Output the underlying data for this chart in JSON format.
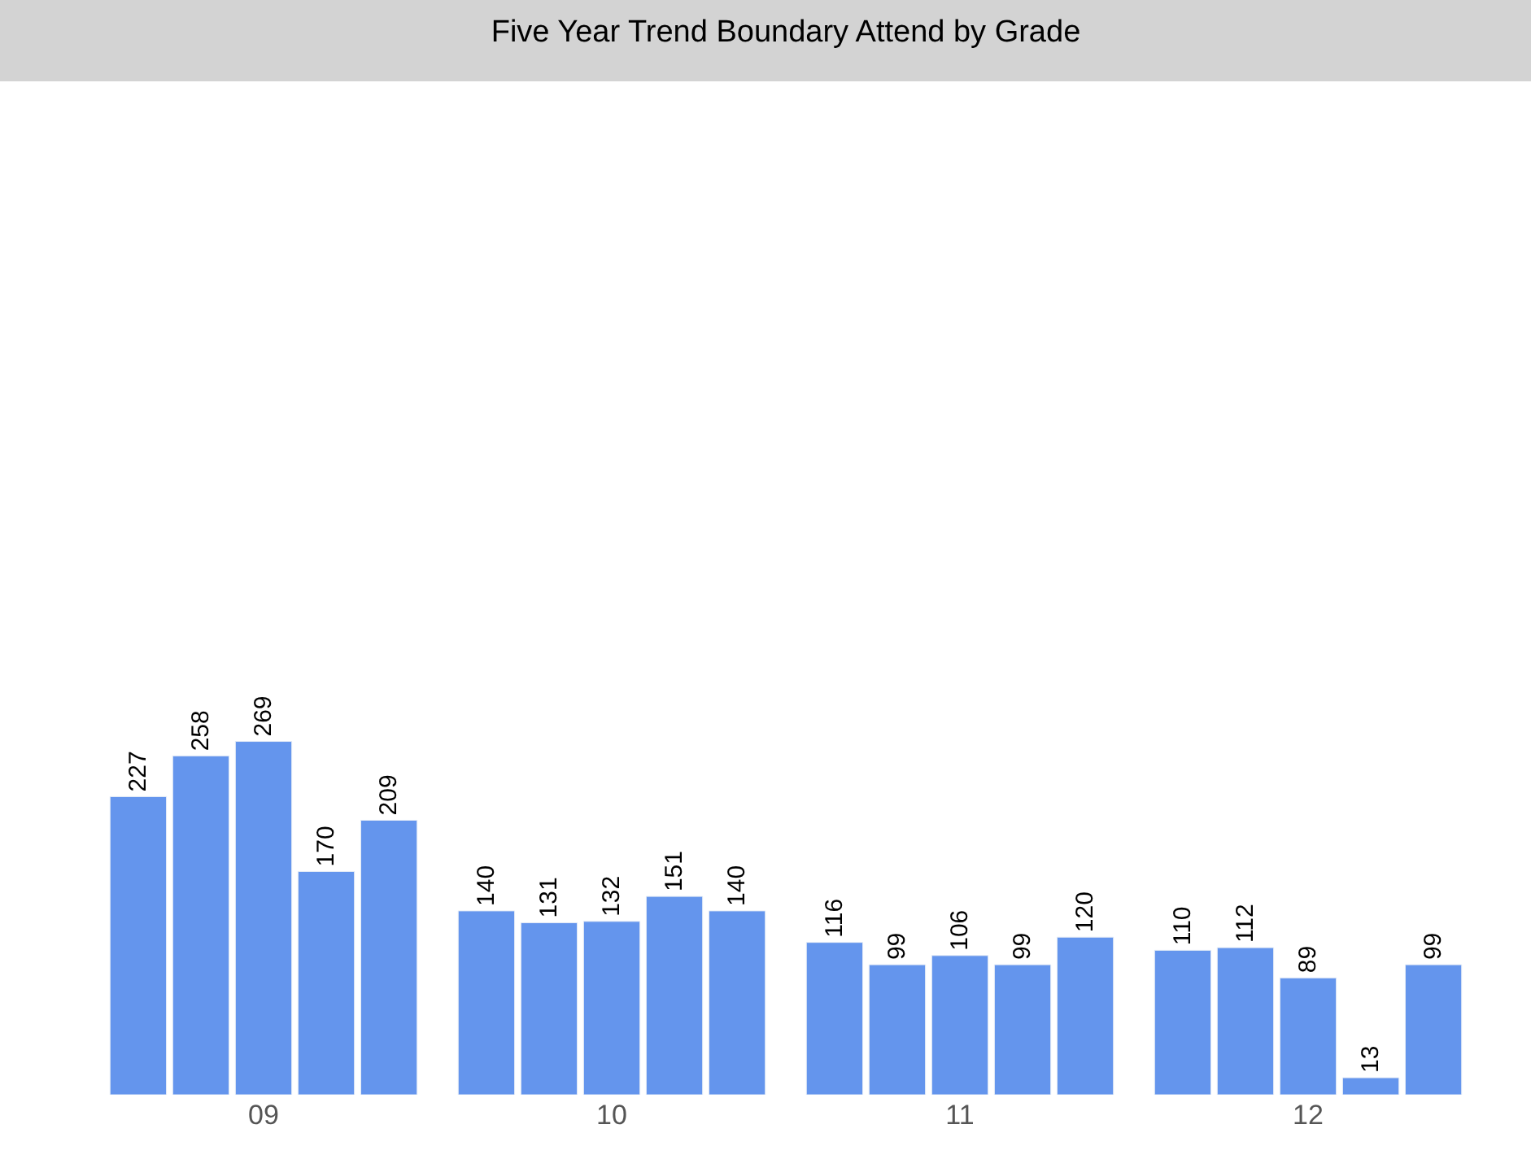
{
  "chart_data": {
    "type": "bar",
    "title": "Five Year Trend Boundary Attend by Grade",
    "categories": [
      "09",
      "10",
      "11",
      "12"
    ],
    "series": [
      {
        "color": "#6495ed",
        "values": [
          227,
          140,
          116,
          110
        ]
      },
      {
        "color": "#6495ed",
        "values": [
          258,
          131,
          99,
          112
        ]
      },
      {
        "color": "#6495ed",
        "values": [
          269,
          132,
          106,
          89
        ]
      },
      {
        "color": "#6495ed",
        "values": [
          170,
          151,
          99,
          13
        ]
      },
      {
        "color": "#6495ed",
        "values": [
          209,
          140,
          120,
          99
        ]
      }
    ],
    "data_labels": true,
    "tick_labels": "x"
  }
}
